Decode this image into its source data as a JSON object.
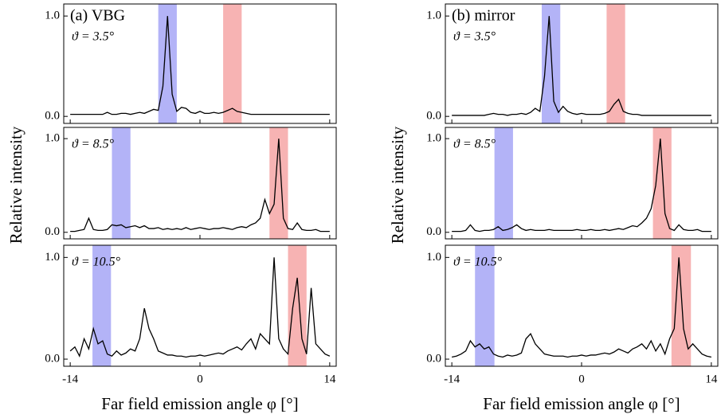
{
  "chart_data": [
    {
      "type": "line",
      "panel_label": "(a) VBG",
      "annotation": "ϑ = 3.5°",
      "x": [
        -14,
        -13.5,
        -13,
        -12.5,
        -12,
        -11.5,
        -11,
        -10.5,
        -10,
        -9.5,
        -9,
        -8.5,
        -8,
        -7.5,
        -7,
        -6.5,
        -6,
        -5.5,
        -5,
        -4.5,
        -4,
        -3.5,
        -3,
        -2.5,
        -2,
        -1.5,
        -1,
        -0.5,
        0,
        0.5,
        1,
        1.5,
        2,
        2.5,
        3,
        3.5,
        4,
        4.5,
        5,
        5.5,
        6,
        6.5,
        7,
        7.5,
        8,
        8.5,
        9,
        9.5,
        10,
        10.5,
        11,
        11.5,
        12,
        12.5,
        13,
        13.5,
        14
      ],
      "values": [
        0.02,
        0.02,
        0.02,
        0.02,
        0.02,
        0.02,
        0.02,
        0.02,
        0.04,
        0.02,
        0.02,
        0.03,
        0.03,
        0.02,
        0.03,
        0.04,
        0.03,
        0.05,
        0.07,
        0.06,
        0.3,
        1.0,
        0.22,
        0.05,
        0.09,
        0.08,
        0.04,
        0.03,
        0.05,
        0.03,
        0.03,
        0.04,
        0.03,
        0.04,
        0.06,
        0.08,
        0.05,
        0.04,
        0.03,
        0.02,
        0.02,
        0.02,
        0.02,
        0.02,
        0.02,
        0.02,
        0.02,
        0.02,
        0.02,
        0.02,
        0.02,
        0.02,
        0.02,
        0.02,
        0.02,
        0.02,
        0.02
      ],
      "color": "#000000",
      "bands": [
        {
          "range": [
            -4.5,
            -2.5
          ],
          "color": "#b3b3f7"
        },
        {
          "range": [
            2.5,
            4.5
          ],
          "color": "#f7b3b3"
        }
      ],
      "xlim": [
        -14.7,
        14.7
      ],
      "ylim": [
        -0.07,
        1.12
      ],
      "xticks": [
        -14,
        0,
        14
      ],
      "yticks": [
        {
          "value": 0,
          "label": "0.0"
        },
        {
          "value": 1,
          "label": "1.0"
        }
      ]
    },
    {
      "type": "line",
      "annotation": "ϑ = 8.5°",
      "ylabel": "Relative intensity",
      "x": [
        -14,
        -13.5,
        -13,
        -12.5,
        -12,
        -11.5,
        -11,
        -10.5,
        -10,
        -9.5,
        -9,
        -8.5,
        -8,
        -7.5,
        -7,
        -6.5,
        -6,
        -5.5,
        -5,
        -4.5,
        -4,
        -3.5,
        -3,
        -2.5,
        -2,
        -1.5,
        -1,
        -0.5,
        0,
        0.5,
        1,
        1.5,
        2,
        2.5,
        3,
        3.5,
        4,
        4.5,
        5,
        5.5,
        6,
        6.5,
        7,
        7.5,
        8,
        8.5,
        9,
        9.5,
        10,
        10.5,
        11,
        11.5,
        12,
        12.5,
        13,
        13.5,
        14
      ],
      "values": [
        0.01,
        0.01,
        0.02,
        0.03,
        0.15,
        0.03,
        0.02,
        0.02,
        0.03,
        0.08,
        0.07,
        0.08,
        0.05,
        0.06,
        0.07,
        0.05,
        0.07,
        0.04,
        0.04,
        0.05,
        0.03,
        0.04,
        0.03,
        0.04,
        0.03,
        0.05,
        0.03,
        0.04,
        0.05,
        0.04,
        0.03,
        0.04,
        0.04,
        0.05,
        0.04,
        0.03,
        0.05,
        0.06,
        0.05,
        0.08,
        0.1,
        0.15,
        0.35,
        0.2,
        0.3,
        1.0,
        0.15,
        0.04,
        0.03,
        0.1,
        0.03,
        0.02,
        0.02,
        0.03,
        0.01,
        0.01,
        0.01
      ],
      "color": "#000000",
      "bands": [
        {
          "range": [
            -9.5,
            -7.5
          ],
          "color": "#b3b3f7"
        },
        {
          "range": [
            7.5,
            9.5
          ],
          "color": "#f7b3b3"
        }
      ],
      "xlim": [
        -14.7,
        14.7
      ],
      "ylim": [
        -0.07,
        1.12
      ],
      "xticks": [
        -14,
        0,
        14
      ],
      "yticks": [
        {
          "value": 0,
          "label": "0.0"
        },
        {
          "value": 1,
          "label": "1.0"
        }
      ]
    },
    {
      "type": "line",
      "annotation": "ϑ = 10.5°",
      "xlabel": "Far field emission angle φ [°]",
      "x": [
        -14,
        -13.5,
        -13,
        -12.5,
        -12,
        -11.5,
        -11,
        -10.5,
        -10,
        -9.5,
        -9,
        -8.5,
        -8,
        -7.5,
        -7,
        -6.5,
        -6,
        -5.5,
        -5,
        -4.5,
        -4,
        -3.5,
        -3,
        -2.5,
        -2,
        -1.5,
        -1,
        -0.5,
        0,
        0.5,
        1,
        1.5,
        2,
        2.5,
        3,
        3.5,
        4,
        4.5,
        5,
        5.5,
        6,
        6.5,
        7,
        7.5,
        8,
        8.5,
        9,
        9.5,
        10,
        10.5,
        11,
        11.5,
        12,
        12.5,
        13,
        13.5,
        14
      ],
      "values": [
        0.08,
        0.12,
        0.03,
        0.2,
        0.1,
        0.3,
        0.15,
        0.18,
        0.05,
        0.03,
        0.08,
        0.04,
        0.06,
        0.1,
        0.08,
        0.2,
        0.5,
        0.3,
        0.2,
        0.08,
        0.06,
        0.04,
        0.04,
        0.03,
        0.03,
        0.02,
        0.03,
        0.03,
        0.04,
        0.03,
        0.04,
        0.05,
        0.06,
        0.05,
        0.08,
        0.1,
        0.12,
        0.09,
        0.15,
        0.2,
        0.1,
        0.25,
        0.2,
        0.15,
        1.0,
        0.2,
        0.1,
        0.05,
        0.5,
        0.8,
        0.2,
        0.05,
        0.7,
        0.15,
        0.1,
        0.05,
        0.03
      ],
      "color": "#000000",
      "bands": [
        {
          "range": [
            -11.6,
            -9.6
          ],
          "color": "#b3b3f7"
        },
        {
          "range": [
            9.5,
            11.5
          ],
          "color": "#f7b3b3"
        }
      ],
      "xlim": [
        -14.7,
        14.7
      ],
      "ylim": [
        -0.07,
        1.12
      ],
      "xticks": [
        -14,
        0,
        14
      ],
      "yticks": [
        {
          "value": 0,
          "label": "0.0"
        },
        {
          "value": 1,
          "label": "1.0"
        }
      ]
    },
    {
      "type": "line",
      "panel_label": "(b) mirror",
      "annotation": "ϑ = 3.5°",
      "x": [
        -14,
        -13.5,
        -13,
        -12.5,
        -12,
        -11.5,
        -11,
        -10.5,
        -10,
        -9.5,
        -9,
        -8.5,
        -8,
        -7.5,
        -7,
        -6.5,
        -6,
        -5.5,
        -5,
        -4.5,
        -4,
        -3.5,
        -3,
        -2.5,
        -2,
        -1.5,
        -1,
        -0.5,
        0,
        0.5,
        1,
        1.5,
        2,
        2.5,
        3,
        3.5,
        4,
        4.5,
        5,
        5.5,
        6,
        6.5,
        7,
        7.5,
        8,
        8.5,
        9,
        9.5,
        10,
        10.5,
        11,
        11.5,
        12,
        12.5,
        13,
        13.5,
        14
      ],
      "values": [
        0.01,
        0.01,
        0.01,
        0.01,
        0.01,
        0.01,
        0.01,
        0.01,
        0.02,
        0.03,
        0.02,
        0.02,
        0.01,
        0.02,
        0.02,
        0.03,
        0.02,
        0.04,
        0.08,
        0.05,
        0.4,
        1.0,
        0.15,
        0.04,
        0.1,
        0.05,
        0.03,
        0.02,
        0.03,
        0.02,
        0.02,
        0.02,
        0.02,
        0.03,
        0.05,
        0.12,
        0.17,
        0.05,
        0.03,
        0.02,
        0.02,
        0.01,
        0.01,
        0.01,
        0.01,
        0.01,
        0.01,
        0.01,
        0.01,
        0.01,
        0.01,
        0.01,
        0.01,
        0.01,
        0.01,
        0.01,
        0.01
      ],
      "color": "#000000",
      "bands": [
        {
          "range": [
            -4.3,
            -2.3
          ],
          "color": "#b3b3f7"
        },
        {
          "range": [
            2.7,
            4.7
          ],
          "color": "#f7b3b3"
        }
      ],
      "xlim": [
        -14.7,
        14.7
      ],
      "ylim": [
        -0.07,
        1.12
      ],
      "xticks": [
        -14,
        0,
        14
      ],
      "yticks": [
        {
          "value": 0,
          "label": "0.0"
        },
        {
          "value": 1,
          "label": "1.0"
        }
      ]
    },
    {
      "type": "line",
      "annotation": "ϑ = 8.5°",
      "ylabel": "Relative intensity",
      "x": [
        -14,
        -13.5,
        -13,
        -12.5,
        -12,
        -11.5,
        -11,
        -10.5,
        -10,
        -9.5,
        -9,
        -8.5,
        -8,
        -7.5,
        -7,
        -6.5,
        -6,
        -5.5,
        -5,
        -4.5,
        -4,
        -3.5,
        -3,
        -2.5,
        -2,
        -1.5,
        -1,
        -0.5,
        0,
        0.5,
        1,
        1.5,
        2,
        2.5,
        3,
        3.5,
        4,
        4.5,
        5,
        5.5,
        6,
        6.5,
        7,
        7.5,
        8,
        8.5,
        9,
        9.5,
        10,
        10.5,
        11,
        11.5,
        12,
        12.5,
        13,
        13.5,
        14
      ],
      "values": [
        0.01,
        0.01,
        0.01,
        0.02,
        0.08,
        0.02,
        0.01,
        0.02,
        0.02,
        0.03,
        0.06,
        0.02,
        0.03,
        0.05,
        0.08,
        0.04,
        0.02,
        0.03,
        0.02,
        0.02,
        0.02,
        0.03,
        0.02,
        0.02,
        0.02,
        0.02,
        0.02,
        0.03,
        0.02,
        0.02,
        0.03,
        0.02,
        0.02,
        0.03,
        0.02,
        0.03,
        0.04,
        0.03,
        0.05,
        0.07,
        0.06,
        0.1,
        0.15,
        0.25,
        0.5,
        1.0,
        0.2,
        0.04,
        0.02,
        0.08,
        0.03,
        0.02,
        0.02,
        0.03,
        0.01,
        0.01,
        0.01
      ],
      "color": "#000000",
      "bands": [
        {
          "range": [
            -9.4,
            -7.4
          ],
          "color": "#b3b3f7"
        },
        {
          "range": [
            7.7,
            9.7
          ],
          "color": "#f7b3b3"
        }
      ],
      "xlim": [
        -14.7,
        14.7
      ],
      "ylim": [
        -0.07,
        1.12
      ],
      "xticks": [
        -14,
        0,
        14
      ],
      "yticks": [
        {
          "value": 0,
          "label": "0.0"
        },
        {
          "value": 1,
          "label": "1.0"
        }
      ]
    },
    {
      "type": "line",
      "annotation": "ϑ = 10.5°",
      "xlabel": "Far field emission angle φ [°]",
      "x": [
        -14,
        -13.5,
        -13,
        -12.5,
        -12,
        -11.5,
        -11,
        -10.5,
        -10,
        -9.5,
        -9,
        -8.5,
        -8,
        -7.5,
        -7,
        -6.5,
        -6,
        -5.5,
        -5,
        -4.5,
        -4,
        -3.5,
        -3,
        -2.5,
        -2,
        -1.5,
        -1,
        -0.5,
        0,
        0.5,
        1,
        1.5,
        2,
        2.5,
        3,
        3.5,
        4,
        4.5,
        5,
        5.5,
        6,
        6.5,
        7,
        7.5,
        8,
        8.5,
        9,
        9.5,
        10,
        10.5,
        11,
        11.5,
        12,
        12.5,
        13,
        13.5,
        14
      ],
      "values": [
        0.02,
        0.03,
        0.05,
        0.08,
        0.18,
        0.12,
        0.15,
        0.1,
        0.12,
        0.05,
        0.03,
        0.02,
        0.04,
        0.03,
        0.04,
        0.06,
        0.2,
        0.25,
        0.15,
        0.1,
        0.05,
        0.04,
        0.03,
        0.03,
        0.03,
        0.02,
        0.03,
        0.03,
        0.04,
        0.03,
        0.04,
        0.04,
        0.05,
        0.06,
        0.05,
        0.07,
        0.1,
        0.08,
        0.06,
        0.1,
        0.12,
        0.15,
        0.1,
        0.18,
        0.08,
        0.15,
        0.05,
        0.2,
        0.3,
        1.0,
        0.3,
        0.1,
        0.15,
        0.1,
        0.05,
        0.03,
        0.02
      ],
      "color": "#000000",
      "bands": [
        {
          "range": [
            -11.5,
            -9.4
          ],
          "color": "#b3b3f7"
        },
        {
          "range": [
            9.7,
            11.8
          ],
          "color": "#f7b3b3"
        }
      ],
      "xlim": [
        -14.7,
        14.7
      ],
      "ylim": [
        -0.07,
        1.12
      ],
      "xticks": [
        -14,
        0,
        14
      ],
      "yticks": [
        {
          "value": 0,
          "label": "0.0"
        },
        {
          "value": 1,
          "label": "1.0"
        }
      ]
    }
  ]
}
